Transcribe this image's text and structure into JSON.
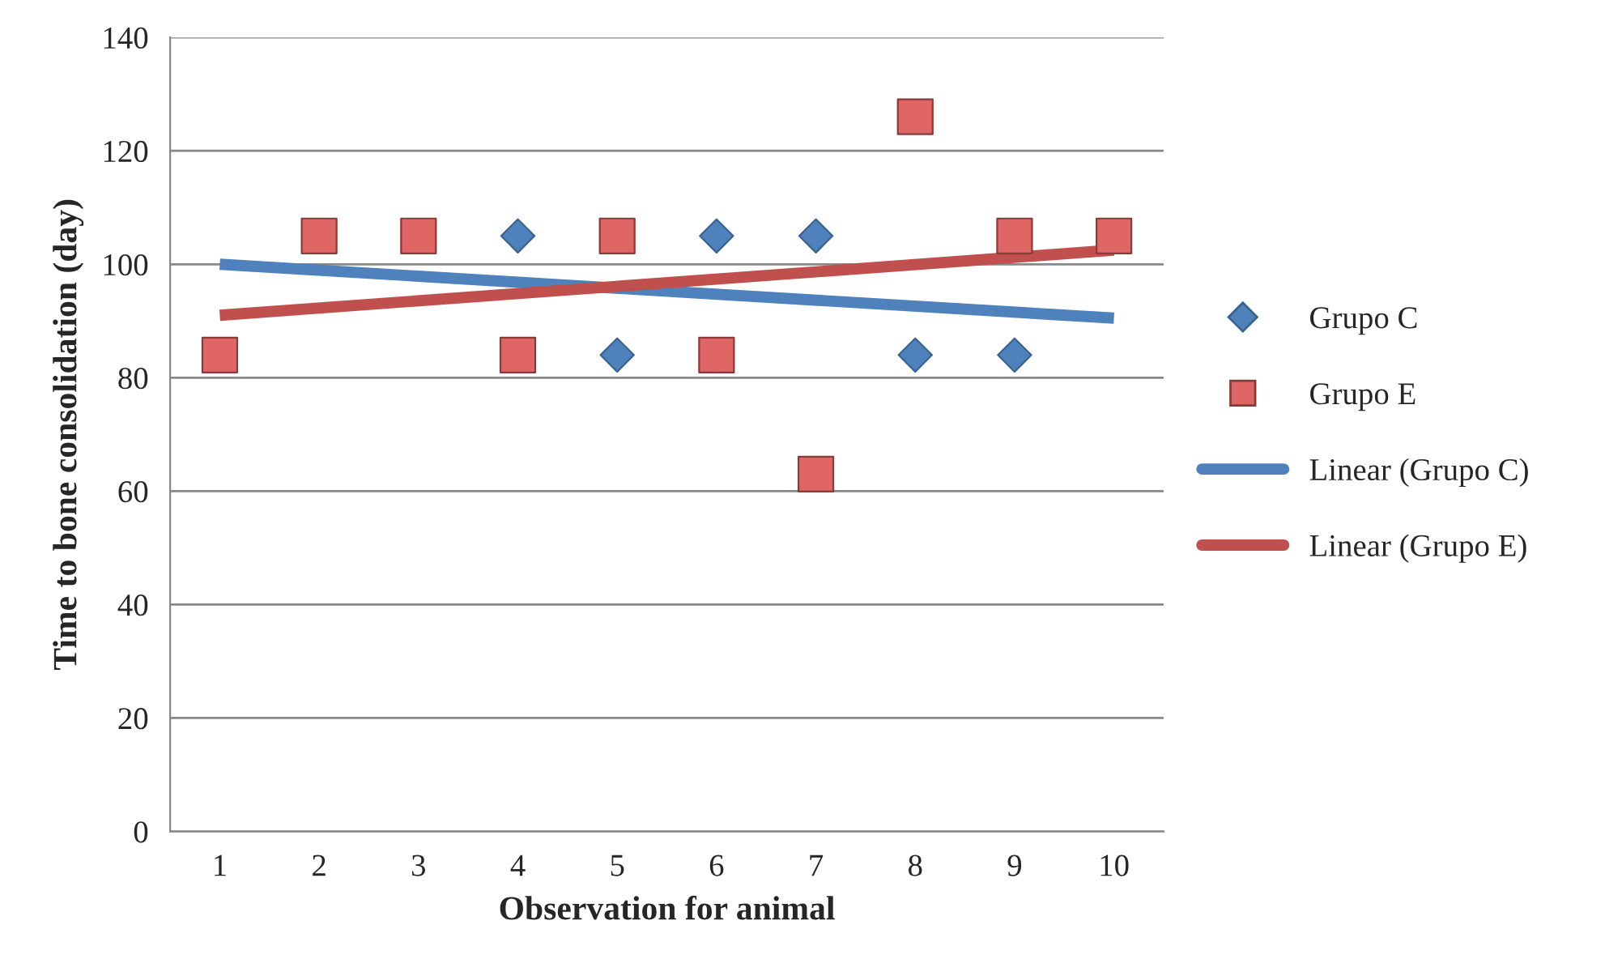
{
  "chart_data": {
    "type": "scatter",
    "xlabel": "Observation for animal",
    "ylabel": "Time to bone consolidation (day)",
    "categories": [
      "1",
      "2",
      "3",
      "4",
      "5",
      "6",
      "7",
      "8",
      "9",
      "10"
    ],
    "series": [
      {
        "name": "Grupo C",
        "color": "#4f81bd",
        "marker": "diamond",
        "values": [
          null,
          null,
          null,
          105,
          84,
          105,
          105,
          84,
          84,
          null
        ]
      },
      {
        "name": "Grupo E",
        "color": "#e06666",
        "marker": "square",
        "values": [
          84,
          105,
          105,
          84,
          105,
          84,
          63,
          126,
          105,
          105
        ]
      },
      {
        "name": "Linear (Grupo C)",
        "type": "line",
        "color": "#4f81bd",
        "x": [
          "1",
          "10"
        ],
        "values": [
          100,
          90.5
        ]
      },
      {
        "name": "Linear (Grupo E)",
        "type": "line",
        "color": "#c0504d",
        "x": [
          "1",
          "10"
        ],
        "values": [
          91,
          102.5
        ]
      }
    ],
    "ylim": [
      0,
      140
    ],
    "yticks": [
      0,
      20,
      40,
      60,
      80,
      100,
      120,
      140
    ],
    "grid": "y",
    "legend": "right"
  }
}
